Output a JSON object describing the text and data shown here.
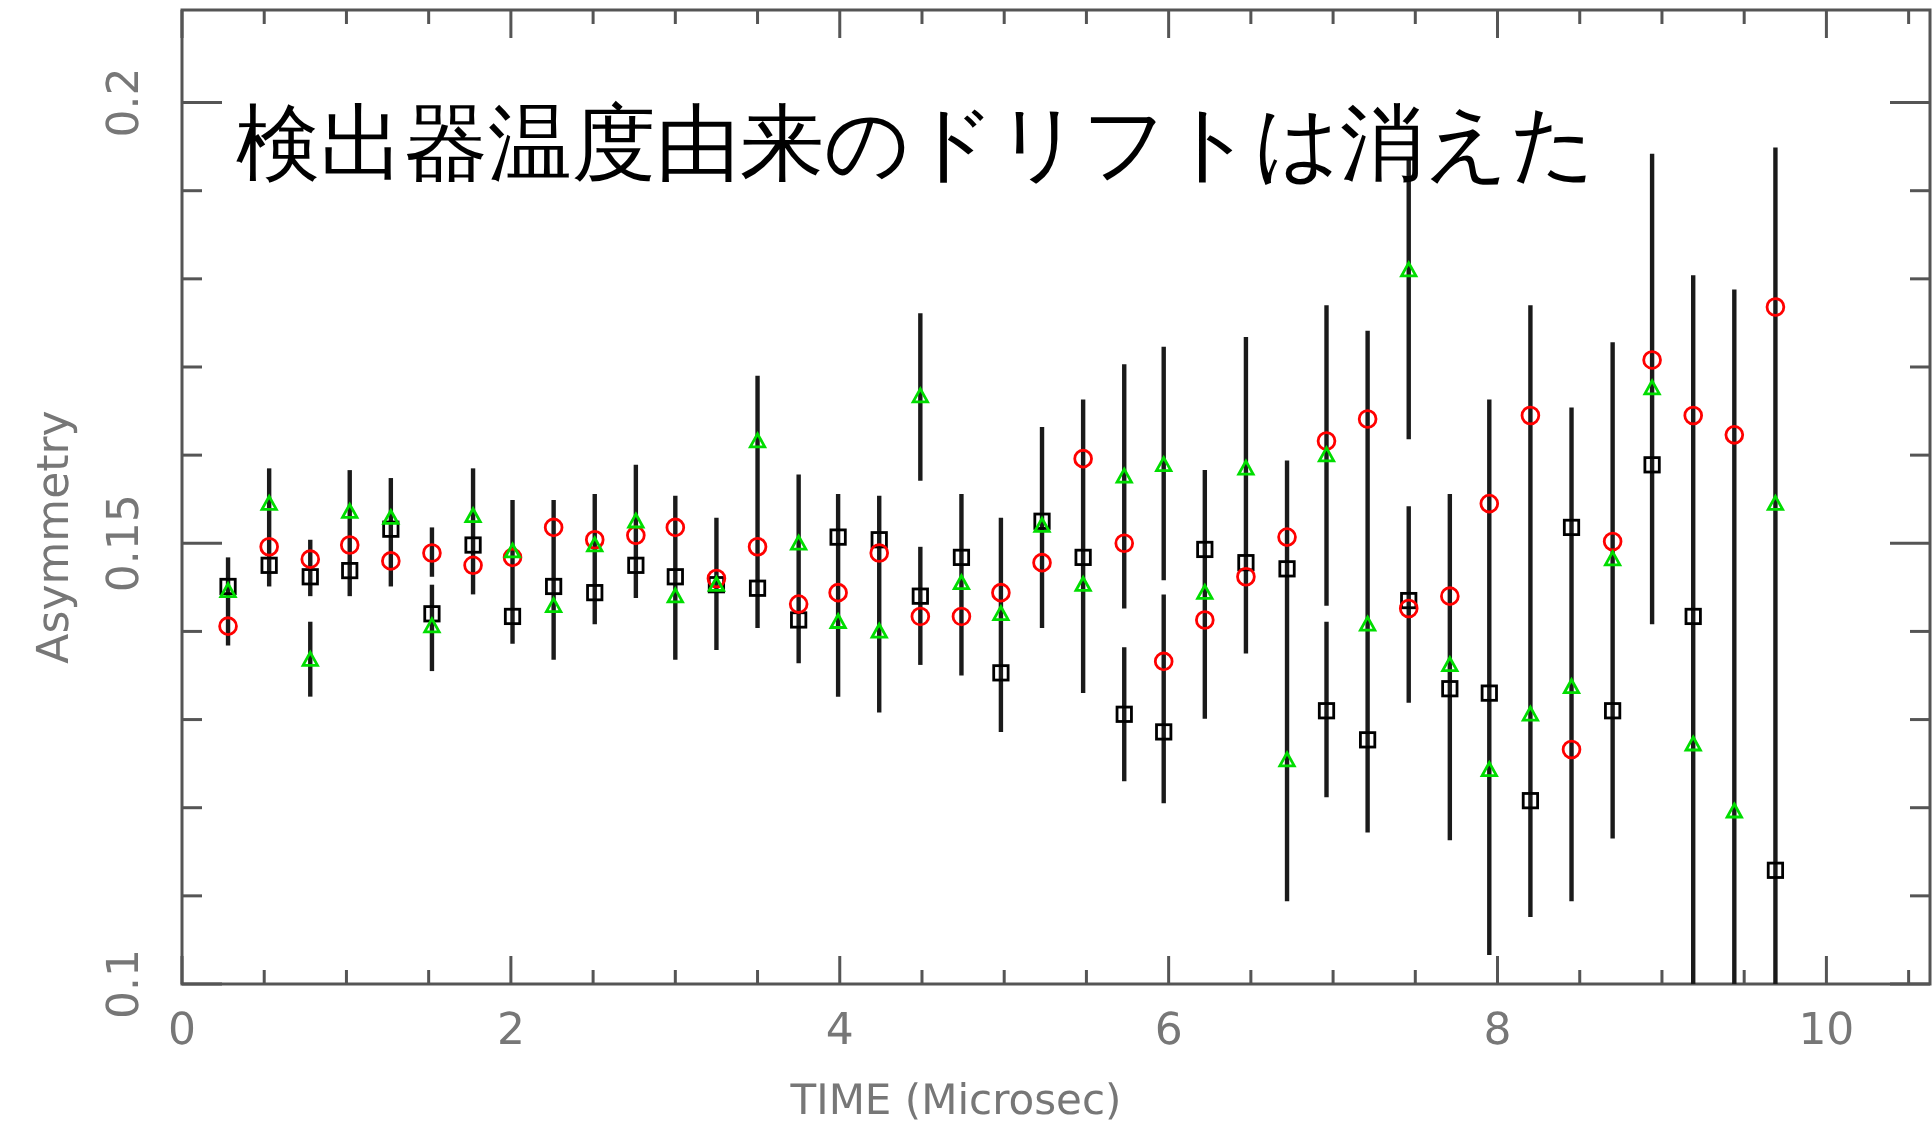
{
  "chart_data": {
    "type": "scatter",
    "title": "検出器温度由来のドリフトは消えた",
    "xlabel": "TIME (Microsec)",
    "ylabel": "Asymmetry",
    "x": [
      0.28,
      0.53,
      0.78,
      1.02,
      1.27,
      1.52,
      1.77,
      2.01,
      2.26,
      2.51,
      2.76,
      3.0,
      3.25,
      3.5,
      3.75,
      3.99,
      4.24,
      4.49,
      4.74,
      4.98,
      5.23,
      5.48,
      5.73,
      5.97,
      6.22,
      6.47,
      6.72,
      6.96,
      7.21,
      7.46,
      7.71,
      7.95,
      8.2,
      8.45,
      8.7,
      8.94,
      9.19,
      9.44,
      9.69
    ],
    "xlim": [
      0,
      10.63
    ],
    "ylim": [
      0.1,
      0.2105
    ],
    "xticks": [
      0,
      {
        "value": 0.5,
        "label": null
      },
      {
        "value": 1,
        "label": null
      },
      {
        "value": 1.5,
        "label": null
      },
      2,
      {
        "value": 2.5,
        "label": null
      },
      {
        "value": 3,
        "label": null
      },
      {
        "value": 3.5,
        "label": null
      },
      4,
      {
        "value": 4.5,
        "label": null
      },
      {
        "value": 5,
        "label": null
      },
      {
        "value": 5.5,
        "label": null
      },
      6,
      {
        "value": 6.5,
        "label": null
      },
      {
        "value": 7,
        "label": null
      },
      {
        "value": 7.5,
        "label": null
      },
      8,
      {
        "value": 8.5,
        "label": null
      },
      {
        "value": 9,
        "label": null
      },
      {
        "value": 9.5,
        "label": null
      },
      10,
      {
        "value": 10.5,
        "label": null
      }
    ],
    "yticks": [
      0.1,
      {
        "value": 0.11,
        "label": null
      },
      {
        "value": 0.12,
        "label": null
      },
      {
        "value": 0.13,
        "label": null
      },
      {
        "value": 0.14,
        "label": null
      },
      0.15,
      {
        "value": 0.16,
        "label": null
      },
      {
        "value": 0.17,
        "label": null
      },
      {
        "value": 0.18,
        "label": null
      },
      {
        "value": 0.19,
        "label": null
      },
      0.2
    ],
    "grid": false,
    "series": [
      {
        "color": "#000000",
        "marker": "square",
        "values": [
          0.1451,
          0.1475,
          0.1462,
          0.1469,
          0.1516,
          0.142,
          0.1498,
          0.1417,
          0.1451,
          0.1444,
          0.1475,
          0.1462,
          0.1453,
          0.1449,
          0.1413,
          0.1507,
          0.1504,
          0.144,
          0.1484,
          0.1353,
          0.1525,
          0.1484,
          0.1306,
          0.1286,
          0.1493,
          0.1478,
          0.1471,
          0.131,
          0.1277,
          0.1435,
          0.1335,
          0.133,
          0.1208,
          0.1518,
          0.131,
          0.1589,
          0.1417,
          null,
          0.1129
        ],
        "errors": [
          [
            0.1384,
            0.1484
          ],
          [
            0.1451,
            0.1585
          ],
          [
            0.144,
            0.1504
          ],
          [
            0.144,
            0.1583
          ],
          [
            0.1451,
            0.1574
          ],
          [
            0.1355,
            0.1453
          ],
          [
            0.1442,
            0.1585
          ],
          [
            0.1386,
            0.1549
          ],
          [
            0.1368,
            0.1549
          ],
          [
            0.1408,
            0.1556
          ],
          [
            0.1438,
            0.1589
          ],
          [
            0.1368,
            0.1554
          ],
          [
            0.1379,
            0.1529
          ],
          [
            0.1404,
            0.169
          ],
          [
            0.1364,
            0.1578
          ],
          [
            0.1326,
            0.1556
          ],
          [
            0.1308,
            0.1554
          ],
          [
            0.1362,
            0.1496
          ],
          [
            0.135,
            0.1556
          ],
          [
            0.1286,
            0.1529
          ],
          [
            0.1404,
            0.1632
          ],
          [
            0.133,
            0.1663
          ],
          [
            0.123,
            0.1382
          ],
          [
            0.1205,
            0.1442
          ],
          [
            0.1301,
            0.1583
          ],
          [
            0.1375,
            0.1734
          ],
          [
            0.1094,
            0.1594
          ],
          [
            0.1212,
            0.1411
          ],
          [
            0.1172,
            0.1741
          ],
          [
            0.1319,
            0.1542
          ],
          [
            0.1163,
            0.1556
          ],
          [
            0.1033,
            0.1663
          ],
          [
            0.1076,
            0.177
          ],
          [
            0.1094,
            0.1654
          ],
          [
            0.1165,
            0.1728
          ],
          [
            0.1408,
            0.1942
          ],
          [
            0.1,
            0.1804
          ],
          null,
          [
            0.1,
            0.1949
          ]
        ]
      },
      {
        "color": "#ff0000",
        "marker": "circle",
        "values": [
          0.1406,
          0.1496,
          0.1482,
          0.1498,
          0.148,
          0.1489,
          0.1475,
          0.1484,
          0.1518,
          0.1504,
          0.1509,
          0.1518,
          0.146,
          0.1496,
          0.1431,
          0.1444,
          0.1489,
          0.1417,
          0.1417,
          0.1444,
          0.1478,
          0.1596,
          0.15,
          0.1366,
          0.1413,
          0.1462,
          0.1507,
          0.1616,
          0.1641,
          0.1426,
          0.144,
          0.1545,
          0.1645,
          0.1266,
          0.1502,
          0.1708,
          0.1645,
          0.1623,
          0.1768
        ],
        "errors": [
          null,
          null,
          null,
          null,
          null,
          [
            0.1462,
            0.1518
          ],
          null,
          null,
          null,
          null,
          null,
          null,
          null,
          null,
          null,
          null,
          null,
          null,
          null,
          null,
          null,
          null,
          [
            0.1426,
            0.1703
          ],
          null,
          null,
          null,
          null,
          [
            0.1429,
            0.177
          ],
          null,
          null,
          null,
          null,
          null,
          null,
          null,
          null,
          null,
          [
            0.1,
            0.1788
          ],
          null
        ]
      },
      {
        "color": "#00dd00",
        "marker": "triangle",
        "values": [
          0.1446,
          0.1545,
          0.1368,
          0.1536,
          0.1529,
          0.1406,
          0.1531,
          0.1491,
          0.1429,
          0.1498,
          0.1525,
          0.144,
          0.1453,
          0.1616,
          0.15,
          0.1411,
          0.14,
          0.1667,
          0.1455,
          0.142,
          0.152,
          0.1453,
          0.1576,
          0.1589,
          0.1444,
          0.1585,
          0.1254,
          0.16,
          0.1408,
          0.181,
          0.1362,
          0.1243,
          0.1306,
          0.1337,
          0.1482,
          0.1676,
          0.1272,
          0.1196,
          0.1545
        ],
        "errors": [
          null,
          null,
          [
            0.1326,
            0.1411
          ],
          null,
          null,
          null,
          null,
          null,
          null,
          null,
          null,
          null,
          null,
          null,
          null,
          null,
          null,
          [
            0.1571,
            0.1761
          ],
          null,
          null,
          null,
          null,
          null,
          [
            0.1458,
            0.1723
          ],
          null,
          null,
          null,
          null,
          null,
          [
            0.1618,
            0.1937
          ],
          null,
          null,
          null,
          null,
          null,
          null,
          null,
          null,
          null
        ]
      }
    ]
  }
}
